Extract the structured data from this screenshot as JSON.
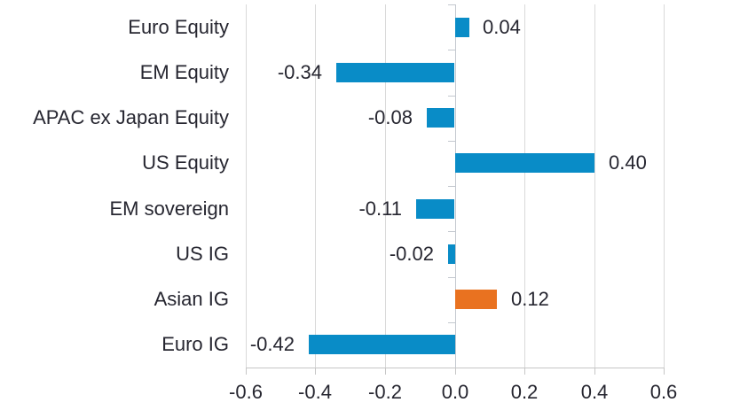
{
  "chart_data": {
    "type": "bar",
    "orientation": "horizontal",
    "title": "",
    "xlabel": "",
    "ylabel": "",
    "categories": [
      "Euro Equity",
      "EM Equity",
      "APAC ex Japan Equity",
      "US Equity",
      "EM sovereign",
      "US IG",
      "Asian IG",
      "Euro IG"
    ],
    "values": [
      0.04,
      -0.34,
      -0.08,
      0.4,
      -0.11,
      -0.02,
      0.12,
      -0.42
    ],
    "value_labels": [
      "0.04",
      "-0.34",
      "-0.08",
      "0.40",
      "-0.11",
      "-0.02",
      "0.12",
      "-0.42"
    ],
    "highlight_index": 6,
    "xlim": [
      -0.6,
      0.6
    ],
    "x_ticks": [
      -0.6,
      -0.4,
      -0.2,
      0,
      0.2,
      0.4,
      0.6
    ],
    "x_tick_labels": [
      "-0.6",
      "-0.4",
      "-0.2",
      "0.0",
      "0.2",
      "0.4",
      "0.6"
    ],
    "grid": true,
    "legend": "none",
    "colors": {
      "bar_default": "#098cc7",
      "bar_highlight": "#e97220",
      "text": "#262630",
      "gridline": "#d9d9d9",
      "zero_axis": "#c3c8cf",
      "bottom_axis": "#c6c6c6"
    }
  }
}
